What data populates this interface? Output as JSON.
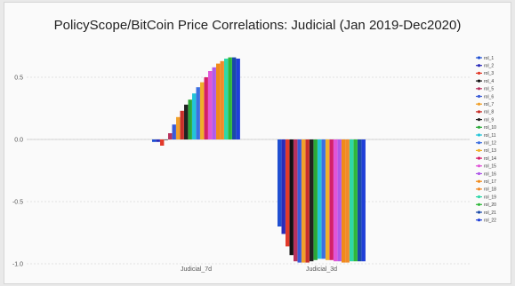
{
  "chart_data": {
    "type": "bar",
    "title": "PolicyScope/BitCoin Price Correlations: Judicial (Jan 2019-Dec2020)",
    "xlabel": "",
    "ylabel": "",
    "categories": [
      "Judicial_7d",
      "Judicial_3d"
    ],
    "ylim": [
      -1.0,
      0.7
    ],
    "yticks": [
      "0.5",
      "0.0",
      "-0.5",
      "-1.0"
    ],
    "grid": true,
    "legend_position": "right",
    "series": [
      {
        "name": "rol_1",
        "color": "#1f4fd1",
        "values": [
          -0.02,
          -0.7
        ]
      },
      {
        "name": "rol_2",
        "color": "#2b2bb8",
        "values": [
          -0.02,
          -0.76
        ]
      },
      {
        "name": "rol_3",
        "color": "#e23a2a",
        "values": [
          -0.05,
          -0.86
        ]
      },
      {
        "name": "rol_4",
        "color": "#111111",
        "values": [
          0.0,
          -0.93
        ]
      },
      {
        "name": "rol_5",
        "color": "#b8325e",
        "values": [
          0.05,
          -0.98
        ]
      },
      {
        "name": "rol_6",
        "color": "#3a5bd6",
        "values": [
          0.12,
          -0.99
        ]
      },
      {
        "name": "rol_7",
        "color": "#f0a02a",
        "values": [
          0.18,
          -0.99
        ]
      },
      {
        "name": "rol_8",
        "color": "#c8302a",
        "values": [
          0.23,
          -0.99
        ]
      },
      {
        "name": "rol_9",
        "color": "#222222",
        "values": [
          0.28,
          -0.98
        ]
      },
      {
        "name": "rol_10",
        "color": "#2aa838",
        "values": [
          0.32,
          -0.97
        ]
      },
      {
        "name": "rol_11",
        "color": "#23c4d8",
        "values": [
          0.37,
          -0.96
        ]
      },
      {
        "name": "rol_12",
        "color": "#3c6fe0",
        "values": [
          0.42,
          -0.96
        ]
      },
      {
        "name": "rol_13",
        "color": "#f0b02a",
        "values": [
          0.46,
          -0.97
        ]
      },
      {
        "name": "rol_14",
        "color": "#d4206a",
        "values": [
          0.5,
          -0.97
        ]
      },
      {
        "name": "rol_15",
        "color": "#e055d8",
        "values": [
          0.55,
          -0.98
        ]
      },
      {
        "name": "rol_16",
        "color": "#b05ae8",
        "values": [
          0.58,
          -0.98
        ]
      },
      {
        "name": "rol_17",
        "color": "#f08a1a",
        "values": [
          0.61,
          -0.99
        ]
      },
      {
        "name": "rol_18",
        "color": "#f08a2a",
        "values": [
          0.63,
          -0.99
        ]
      },
      {
        "name": "rol_19",
        "color": "#2fd8a8",
        "values": [
          0.65,
          -0.98
        ]
      },
      {
        "name": "rol_20",
        "color": "#2fb83a",
        "values": [
          0.66,
          -0.98
        ]
      },
      {
        "name": "rol_21",
        "color": "#1a4aa8",
        "values": [
          0.66,
          -0.98
        ]
      },
      {
        "name": "rol_22",
        "color": "#1f3fd8",
        "values": [
          0.65,
          -0.98
        ]
      }
    ]
  }
}
